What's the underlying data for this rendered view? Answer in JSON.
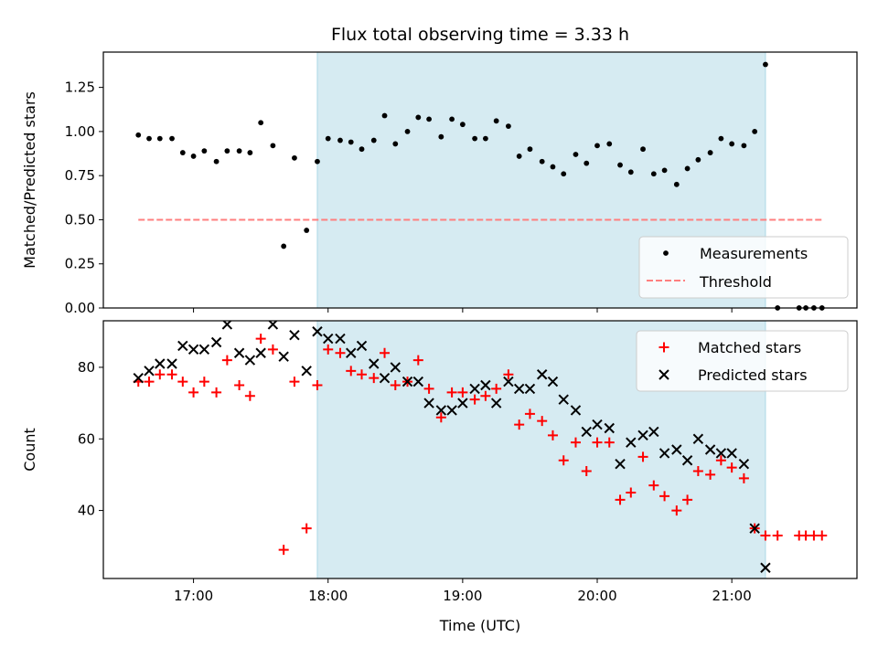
{
  "chart_data": [
    {
      "type": "scatter",
      "title": "Flux total observing time = 3.33 h",
      "xlabel": "",
      "ylabel": "Matched/Predicted stars",
      "xlim": [
        16.33,
        21.93
      ],
      "ylim": [
        0,
        1.45
      ],
      "yticks": [
        0,
        0.25,
        0.5,
        0.75,
        1.0,
        1.25
      ],
      "ytick_labels": [
        "0.00",
        "0.25",
        "0.50",
        "0.75",
        "1.00",
        "1.25"
      ],
      "shaded_region": {
        "x0": 17.92,
        "x1": 21.25,
        "color": "#add8e6"
      },
      "grid": false,
      "legend_position": "lower-right",
      "series": [
        {
          "name": "Measurements",
          "kind": "points",
          "color": "#000000",
          "x": [
            16.59,
            16.67,
            16.75,
            16.84,
            16.92,
            17.0,
            17.08,
            17.17,
            17.25,
            17.34,
            17.42,
            17.5,
            17.59,
            17.67,
            17.75,
            17.84,
            17.92,
            18.0,
            18.09,
            18.17,
            18.25,
            18.34,
            18.42,
            18.5,
            18.59,
            18.67,
            18.75,
            18.84,
            18.92,
            19.0,
            19.09,
            19.17,
            19.25,
            19.34,
            19.42,
            19.5,
            19.59,
            19.67,
            19.75,
            19.84,
            19.92,
            20.0,
            20.09,
            20.17,
            20.25,
            20.34,
            20.42,
            20.5,
            20.59,
            20.67,
            20.75,
            20.84,
            20.92,
            21.0,
            21.09,
            21.17,
            21.25,
            21.34,
            21.5,
            21.55,
            21.61,
            21.67
          ],
          "y": [
            0.98,
            0.96,
            0.96,
            0.96,
            0.88,
            0.86,
            0.89,
            0.83,
            0.89,
            0.89,
            0.88,
            1.05,
            0.92,
            0.35,
            0.85,
            0.44,
            0.83,
            0.96,
            0.95,
            0.94,
            0.9,
            0.95,
            1.09,
            0.93,
            1.0,
            1.08,
            1.07,
            0.97,
            1.07,
            1.04,
            0.96,
            0.96,
            1.06,
            1.03,
            0.86,
            0.9,
            0.83,
            0.8,
            0.76,
            0.87,
            0.82,
            0.92,
            0.93,
            0.81,
            0.77,
            0.9,
            0.76,
            0.78,
            0.7,
            0.79,
            0.84,
            0.88,
            0.96,
            0.93,
            0.92,
            1.0,
            1.38,
            0.0,
            0.0,
            0.0,
            0.0,
            0.0
          ]
        },
        {
          "name": "Threshold",
          "kind": "dashed-line",
          "color": "#ff7f7f",
          "x": [
            16.59,
            21.67
          ],
          "y": [
            0.5,
            0.5
          ]
        }
      ]
    },
    {
      "type": "scatter",
      "title": "",
      "xlabel": "Time (UTC)",
      "ylabel": "Count",
      "xlim": [
        16.33,
        21.93
      ],
      "ylim": [
        21,
        93
      ],
      "xticks": [
        17,
        18,
        19,
        20,
        21
      ],
      "xtick_labels": [
        "17:00",
        "18:00",
        "19:00",
        "20:00",
        "21:00"
      ],
      "yticks": [
        40,
        60,
        80
      ],
      "ytick_labels": [
        "40",
        "60",
        "80"
      ],
      "shaded_region": {
        "x0": 17.92,
        "x1": 21.25,
        "color": "#add8e6"
      },
      "grid": false,
      "legend_position": "upper-right",
      "series": [
        {
          "name": "Matched stars",
          "marker": "plus",
          "color": "#ff0000",
          "x": [
            16.59,
            16.67,
            16.75,
            16.84,
            16.92,
            17.0,
            17.08,
            17.17,
            17.25,
            17.34,
            17.42,
            17.5,
            17.59,
            17.67,
            17.75,
            17.84,
            17.92,
            18.0,
            18.09,
            18.17,
            18.25,
            18.34,
            18.42,
            18.5,
            18.59,
            18.67,
            18.75,
            18.84,
            18.92,
            19.0,
            19.09,
            19.17,
            19.25,
            19.34,
            19.42,
            19.5,
            19.59,
            19.67,
            19.75,
            19.84,
            19.92,
            20.0,
            20.09,
            20.17,
            20.25,
            20.34,
            20.42,
            20.5,
            20.59,
            20.67,
            20.75,
            20.84,
            20.92,
            21.0,
            21.09,
            21.17,
            21.25,
            21.34,
            21.5,
            21.55,
            21.61,
            21.67
          ],
          "y": [
            76,
            76,
            78,
            78,
            76,
            73,
            76,
            73,
            82,
            75,
            72,
            88,
            85,
            29,
            76,
            35,
            75,
            85,
            84,
            79,
            78,
            77,
            84,
            75,
            76,
            82,
            74,
            66,
            73,
            73,
            71,
            72,
            74,
            78,
            64,
            67,
            65,
            61,
            54,
            59,
            51,
            59,
            59,
            43,
            45,
            55,
            47,
            44,
            40,
            43,
            51,
            50,
            54,
            52,
            49,
            35,
            33,
            33,
            33,
            33,
            33,
            33
          ]
        },
        {
          "name": "Predicted stars",
          "marker": "cross",
          "color": "#000000",
          "x": [
            16.59,
            16.67,
            16.75,
            16.84,
            16.92,
            17.0,
            17.08,
            17.17,
            17.25,
            17.34,
            17.42,
            17.5,
            17.59,
            17.67,
            17.75,
            17.84,
            17.92,
            18.0,
            18.09,
            18.17,
            18.25,
            18.34,
            18.42,
            18.5,
            18.59,
            18.67,
            18.75,
            18.84,
            18.92,
            19.0,
            19.09,
            19.17,
            19.25,
            19.34,
            19.42,
            19.5,
            19.59,
            19.67,
            19.75,
            19.84,
            19.92,
            20.0,
            20.09,
            20.17,
            20.25,
            20.34,
            20.42,
            20.5,
            20.59,
            20.67,
            20.75,
            20.84,
            20.92,
            21.0,
            21.09,
            21.17,
            21.25
          ],
          "y": [
            77,
            79,
            81,
            81,
            86,
            85,
            85,
            87,
            92,
            84,
            82,
            84,
            92,
            83,
            89,
            79,
            90,
            88,
            88,
            84,
            86,
            81,
            77,
            80,
            76,
            76,
            70,
            68,
            68,
            70,
            74,
            75,
            70,
            76,
            74,
            74,
            78,
            76,
            71,
            68,
            62,
            64,
            63,
            53,
            59,
            61,
            62,
            56,
            57,
            54,
            60,
            57,
            56,
            56,
            53,
            35,
            24
          ]
        }
      ]
    }
  ]
}
